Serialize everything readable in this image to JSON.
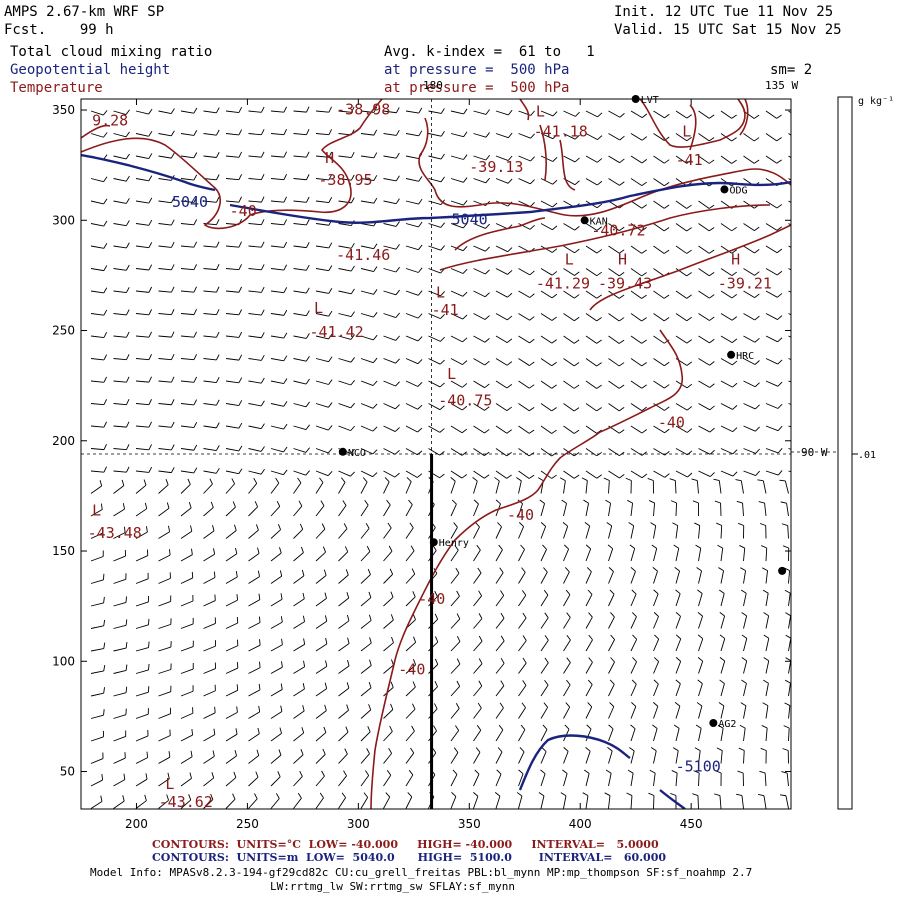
{
  "header": {
    "left_title": "AMPS 2.67-km WRF SP",
    "forecast": "Fcst.    99 h",
    "init": "Init. 12 UTC Tue 11 Nov 25",
    "valid": "Valid. 15 UTC Sat 15 Nov 25",
    "field_cloud": "Total cloud mixing ratio",
    "field_geo": "Geopotential height",
    "field_temp": "Temperature",
    "avg_k": "Avg. k-index =  61 to   1",
    "pressure_geo": "at pressure =  500 hPa",
    "pressure_temp": "at pressure =  500 hPa",
    "sm": "sm= 2"
  },
  "axes": {
    "x_ticks": [
      "200",
      "250",
      "300",
      "350",
      "400",
      "450"
    ],
    "y_ticks": [
      "350",
      "300",
      "250",
      "200",
      "150",
      "100",
      "50"
    ],
    "x_range": [
      175,
      495
    ],
    "y_range": [
      33,
      355
    ]
  },
  "reference_lines": {
    "lon_label_top": "180",
    "lon_label_135": "135 W",
    "lon_label_90": "90 W",
    "x_meridian": 333,
    "y_parallel": 194
  },
  "colorbar": {
    "units": "g kg⁻¹",
    "tick_label": ".01"
  },
  "stations": [
    {
      "name": "NCO",
      "x": 293,
      "y": 195
    },
    {
      "name": "Henry",
      "x": 334,
      "y": 154
    },
    {
      "name": "HRC",
      "x": 468,
      "y": 239
    },
    {
      "name": "AG2",
      "x": 460,
      "y": 72
    },
    {
      "name": "KAN",
      "x": 402,
      "y": 300
    },
    {
      "name": "ODG",
      "x": 465,
      "y": 314
    },
    {
      "name": "LVT",
      "x": 425,
      "y": 355
    },
    {
      "name": "",
      "x": 491,
      "y": 141
    }
  ],
  "temp_labels": [
    {
      "text": "-38.98",
      "x": 290,
      "y": 348
    },
    {
      "text": "9.28",
      "x": 180,
      "y": 343
    },
    {
      "text": "H",
      "x": 285,
      "y": 326
    },
    {
      "text": "-38.95",
      "x": 282,
      "y": 316
    },
    {
      "text": "-40",
      "x": 242,
      "y": 302
    },
    {
      "text": "-41.46",
      "x": 290,
      "y": 282
    },
    {
      "text": "L",
      "x": 280,
      "y": 258
    },
    {
      "text": "-41.42",
      "x": 278,
      "y": 247
    },
    {
      "text": "-39.13",
      "x": 350,
      "y": 322
    },
    {
      "text": "L",
      "x": 335,
      "y": 265
    },
    {
      "text": "-41",
      "x": 333,
      "y": 257
    },
    {
      "text": "L",
      "x": 340,
      "y": 228
    },
    {
      "text": "-40.75",
      "x": 336,
      "y": 216
    },
    {
      "text": "-41.18",
      "x": 379,
      "y": 338
    },
    {
      "text": "L",
      "x": 380,
      "y": 347
    },
    {
      "text": "-40.72",
      "x": 405,
      "y": 293
    },
    {
      "text": "L",
      "x": 393,
      "y": 280
    },
    {
      "text": "-41.29",
      "x": 380,
      "y": 269
    },
    {
      "text": "H",
      "x": 417,
      "y": 280
    },
    {
      "text": "-39.43",
      "x": 408,
      "y": 269
    },
    {
      "text": "H",
      "x": 468,
      "y": 280
    },
    {
      "text": "-39.21",
      "x": 462,
      "y": 269
    },
    {
      "text": "L",
      "x": 446,
      "y": 338
    },
    {
      "text": "-41",
      "x": 443,
      "y": 325
    },
    {
      "text": "-40",
      "x": 435,
      "y": 206
    },
    {
      "text": "-40",
      "x": 367,
      "y": 164
    },
    {
      "text": "L",
      "x": 180,
      "y": 166
    },
    {
      "text": "-43.48",
      "x": 178,
      "y": 156
    },
    {
      "text": "-40",
      "x": 327,
      "y": 126
    },
    {
      "text": "-40",
      "x": 318,
      "y": 94
    },
    {
      "text": "L",
      "x": 213,
      "y": 42
    },
    {
      "text": "-43.62",
      "x": 210,
      "y": 34
    }
  ],
  "geo_labels": [
    {
      "text": "5040",
      "x": 216,
      "y": 306
    },
    {
      "text": "5040",
      "x": 342,
      "y": 298
    },
    {
      "text": "-5100",
      "x": 443,
      "y": 50
    }
  ],
  "footer": {
    "temp_contours": "CONTOURS:  UNITS=°C  LOW= -40.000     HIGH= -40.000     INTERVAL=   5.0000",
    "geo_contours": "CONTOURS:  UNITS=m  LOW=  5040.0      HIGH=  5100.0       INTERVAL=   60.000",
    "model_info_1": "Model Info: MPASv8.2.3-194-gf29cd82c CU:cu_grell_freitas PBL:bl_mynn MP:mp_thompson SF:sf_noahmp 2.7",
    "model_info_2": "LW:rrtmg_lw SW:rrtmg_sw SFLAY:sf_mynn"
  },
  "colors": {
    "temperature": "#8b1a1a",
    "geopotential": "#1a237e",
    "foot_temp": "#8b1a1a",
    "foot_geo": "#1a237e"
  }
}
